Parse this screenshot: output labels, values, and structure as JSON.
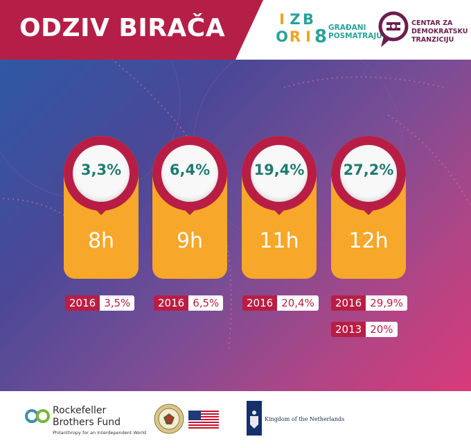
{
  "header": {
    "title": "ODZIV BIRAČA",
    "izbori_logo": {
      "letters": [
        "I",
        "Z",
        "B",
        "O",
        "R",
        "I"
      ],
      "digit": "8",
      "tagline_1": "GRAĐANI",
      "tagline_2": "POSMATRAJU"
    },
    "cdt_logo": {
      "line_1": "CENTAR ZA",
      "line_2": "DEMOKRATSKU",
      "line_3": "TRANZICIJU",
      "icon": "cdt-speech-bubble-icon"
    }
  },
  "cards": [
    {
      "percent": "3,3%",
      "hour": "8h"
    },
    {
      "percent": "6,4%",
      "hour": "9h"
    },
    {
      "percent": "19,4%",
      "hour": "11h"
    },
    {
      "percent": "27,2%",
      "hour": "12h"
    }
  ],
  "comparisons": [
    {
      "year": "2016",
      "value": "3,5%"
    },
    {
      "year": "2016",
      "value": "6,5%"
    },
    {
      "year": "2016",
      "value": "20,4%"
    },
    {
      "year": "2016",
      "value": "29,9%"
    },
    {
      "year": "2013",
      "value": "20%"
    }
  ],
  "footer": {
    "rbf_name_1": "Rockefeller",
    "rbf_name_2": "Brothers Fund",
    "rbf_tagline": "Philanthropy for an Interdependent World",
    "us_embassy_icon": "us-embassy-seal-icon",
    "us_flag_icon": "us-flag-icon",
    "nl_text": "Kingdom of the Netherlands",
    "nl_icon": "netherlands-crest-icon"
  },
  "colors": {
    "crimson": "#b81e45",
    "orange": "#f7a72a",
    "teal": "#1d7b72",
    "gradient_start": "#2f58a5",
    "gradient_end": "#d83a79"
  }
}
